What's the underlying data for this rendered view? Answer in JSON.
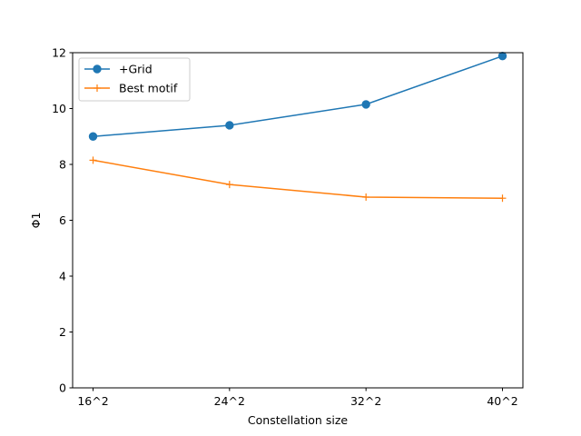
{
  "chart_data": {
    "type": "line",
    "categories": [
      "16^2",
      "24^2",
      "32^2",
      "40^2"
    ],
    "series": [
      {
        "name": "+Grid",
        "values": [
          9.0,
          9.4,
          10.15,
          11.88
        ],
        "color": "#1f77b4",
        "marker": "circle"
      },
      {
        "name": "Best motif",
        "values": [
          8.15,
          7.28,
          6.83,
          6.79
        ],
        "color": "#ff7f0e",
        "marker": "plus"
      }
    ],
    "xlabel": "Constellation size",
    "ylabel": "Φ1",
    "ylim": [
      0,
      12
    ],
    "yticks": [
      "0",
      "2",
      "4",
      "6",
      "8",
      "10",
      "12"
    ],
    "grid": false,
    "legend_position": "top-left"
  }
}
